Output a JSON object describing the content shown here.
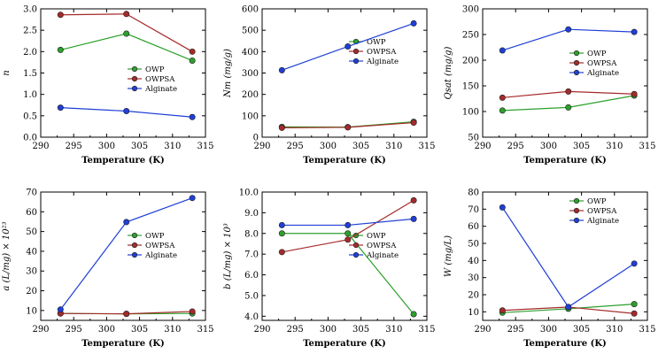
{
  "series_styles": [
    {
      "name": "OWP",
      "color": "#2ca02c"
    },
    {
      "name": "OWPSA",
      "color": "#a52a2a"
    },
    {
      "name": "Alginate",
      "color": "#1f3fd6"
    }
  ],
  "chart_data": [
    {
      "type": "line",
      "xlabel": "Temperature (K)",
      "ylabel": "n",
      "x": [
        293,
        303,
        313
      ],
      "xlim": [
        290,
        315
      ],
      "xticks": [
        290,
        295,
        300,
        305,
        310,
        315
      ],
      "ylim": [
        0,
        3
      ],
      "yticks": [
        0,
        0.5,
        1,
        1.5,
        2,
        2.5,
        3
      ],
      "ytick_labels": [
        "0.0",
        "0.5",
        "1.0",
        "1.5",
        "2.0",
        "2.5",
        "3.0"
      ],
      "legend": "right",
      "series": [
        {
          "name": "OWP",
          "values": [
            2.04,
            2.42,
            1.79
          ]
        },
        {
          "name": "OWPSA",
          "values": [
            2.86,
            2.88,
            2.0
          ]
        },
        {
          "name": "Alginate",
          "values": [
            0.69,
            0.61,
            0.47
          ]
        }
      ]
    },
    {
      "type": "line",
      "xlabel": "Temperature (K)",
      "ylabel": "Nm (mg/g)",
      "x": [
        293,
        303,
        313
      ],
      "xlim": [
        290,
        315
      ],
      "xticks": [
        290,
        295,
        300,
        305,
        310,
        315
      ],
      "ylim": [
        0,
        600
      ],
      "yticks": [
        0,
        100,
        200,
        300,
        400,
        500,
        600
      ],
      "ytick_labels": [
        "0",
        "100",
        "200",
        "300",
        "400",
        "500",
        "600"
      ],
      "legend": "top-right",
      "series": [
        {
          "name": "OWP",
          "values": [
            48,
            47,
            72
          ]
        },
        {
          "name": "OWPSA",
          "values": [
            44,
            46,
            68
          ]
        },
        {
          "name": "Alginate",
          "values": [
            313,
            424,
            532
          ]
        }
      ]
    },
    {
      "type": "line",
      "xlabel": "Temperature (K)",
      "ylabel": "Qsat (mg/g)",
      "x": [
        293,
        303,
        313
      ],
      "xlim": [
        290,
        315
      ],
      "xticks": [
        290,
        295,
        300,
        305,
        310,
        315
      ],
      "ylim": [
        50,
        300
      ],
      "yticks": [
        50,
        100,
        150,
        200,
        250,
        300
      ],
      "ytick_labels": [
        "50",
        "100",
        "150",
        "200",
        "250",
        "300"
      ],
      "legend": "right",
      "series": [
        {
          "name": "OWP",
          "values": [
            102,
            108,
            131
          ]
        },
        {
          "name": "OWPSA",
          "values": [
            127,
            139,
            134
          ]
        },
        {
          "name": "Alginate",
          "values": [
            219,
            260,
            255
          ]
        }
      ]
    },
    {
      "type": "line",
      "xlabel": "Temperature (K)",
      "ylabel": "a (L/mg) × 10²³",
      "x": [
        293,
        303,
        313
      ],
      "xlim": [
        290,
        315
      ],
      "xticks": [
        290,
        295,
        300,
        305,
        310,
        315
      ],
      "ylim": [
        5,
        70
      ],
      "yticks": [
        10,
        20,
        30,
        40,
        50,
        60,
        70
      ],
      "ytick_labels": [
        "10",
        "20",
        "30",
        "40",
        "50",
        "60",
        "70"
      ],
      "legend": "right",
      "series": [
        {
          "name": "OWP",
          "values": [
            8.5,
            8.3,
            8.5
          ]
        },
        {
          "name": "OWPSA",
          "values": [
            8.5,
            8.3,
            9.5
          ]
        },
        {
          "name": "Alginate",
          "values": [
            10.5,
            54.8,
            67.0
          ]
        }
      ]
    },
    {
      "type": "line",
      "xlabel": "Temperature (K)",
      "ylabel": "b (L/mg) × 10³",
      "x": [
        293,
        303,
        313
      ],
      "xlim": [
        290,
        315
      ],
      "xticks": [
        290,
        295,
        300,
        305,
        310,
        315
      ],
      "ylim": [
        3.8,
        10
      ],
      "yticks": [
        4,
        5,
        6,
        7,
        8,
        9,
        10
      ],
      "ytick_labels": [
        "4.0",
        "5.0",
        "6.0",
        "7.0",
        "8.0",
        "9.0",
        "10.0"
      ],
      "legend": "right",
      "series": [
        {
          "name": "OWP",
          "values": [
            8.0,
            8.0,
            4.1
          ]
        },
        {
          "name": "OWPSA",
          "values": [
            7.1,
            7.7,
            9.6
          ]
        },
        {
          "name": "Alginate",
          "values": [
            8.4,
            8.4,
            8.7
          ]
        }
      ]
    },
    {
      "type": "line",
      "xlabel": "Temperature (K)",
      "ylabel": "W (mg/L)",
      "x": [
        293,
        303,
        313
      ],
      "xlim": [
        290,
        315
      ],
      "xticks": [
        290,
        295,
        300,
        305,
        310,
        315
      ],
      "ylim": [
        5,
        80
      ],
      "yticks": [
        10,
        20,
        30,
        40,
        50,
        60,
        70,
        80
      ],
      "ytick_labels": [
        "10",
        "20",
        "30",
        "40",
        "50",
        "60",
        "70",
        "80"
      ],
      "legend": "top-right",
      "series": [
        {
          "name": "OWP",
          "values": [
            9.5,
            11.8,
            14.5
          ]
        },
        {
          "name": "OWPSA",
          "values": [
            10.8,
            12.8,
            9.0
          ]
        },
        {
          "name": "Alginate",
          "values": [
            71,
            12.8,
            38.2
          ]
        }
      ]
    }
  ]
}
